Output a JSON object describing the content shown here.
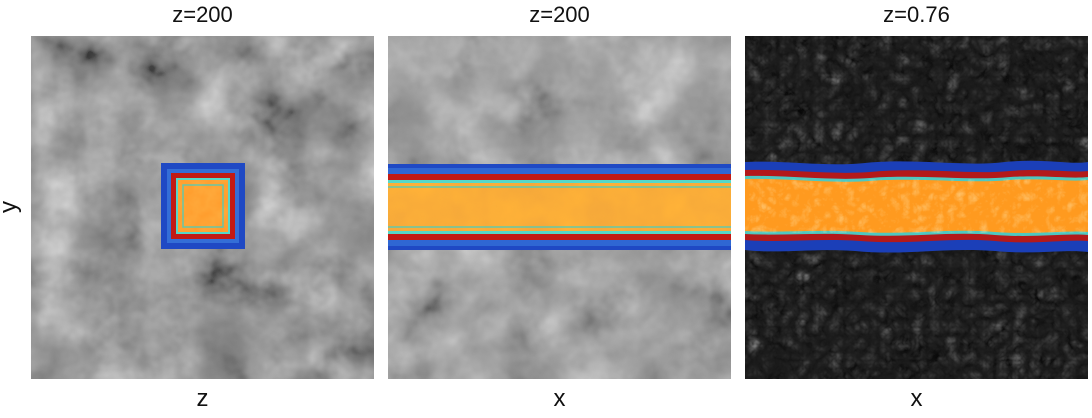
{
  "figure": {
    "panels": [
      {
        "title": "z=200",
        "xlabel": "z"
      },
      {
        "title": "z=200",
        "xlabel": "x"
      },
      {
        "title": "z=0.76",
        "xlabel": "x"
      }
    ],
    "ylabel": "y"
  },
  "colors": {
    "background": "#ffffff",
    "shell_blue": "#1a3fb0",
    "shell_red": "#b81a1a",
    "shell_cyan": "#4fd1c9",
    "core_orange": "#f08a1e",
    "core_yellow": "#ffc74a"
  }
}
